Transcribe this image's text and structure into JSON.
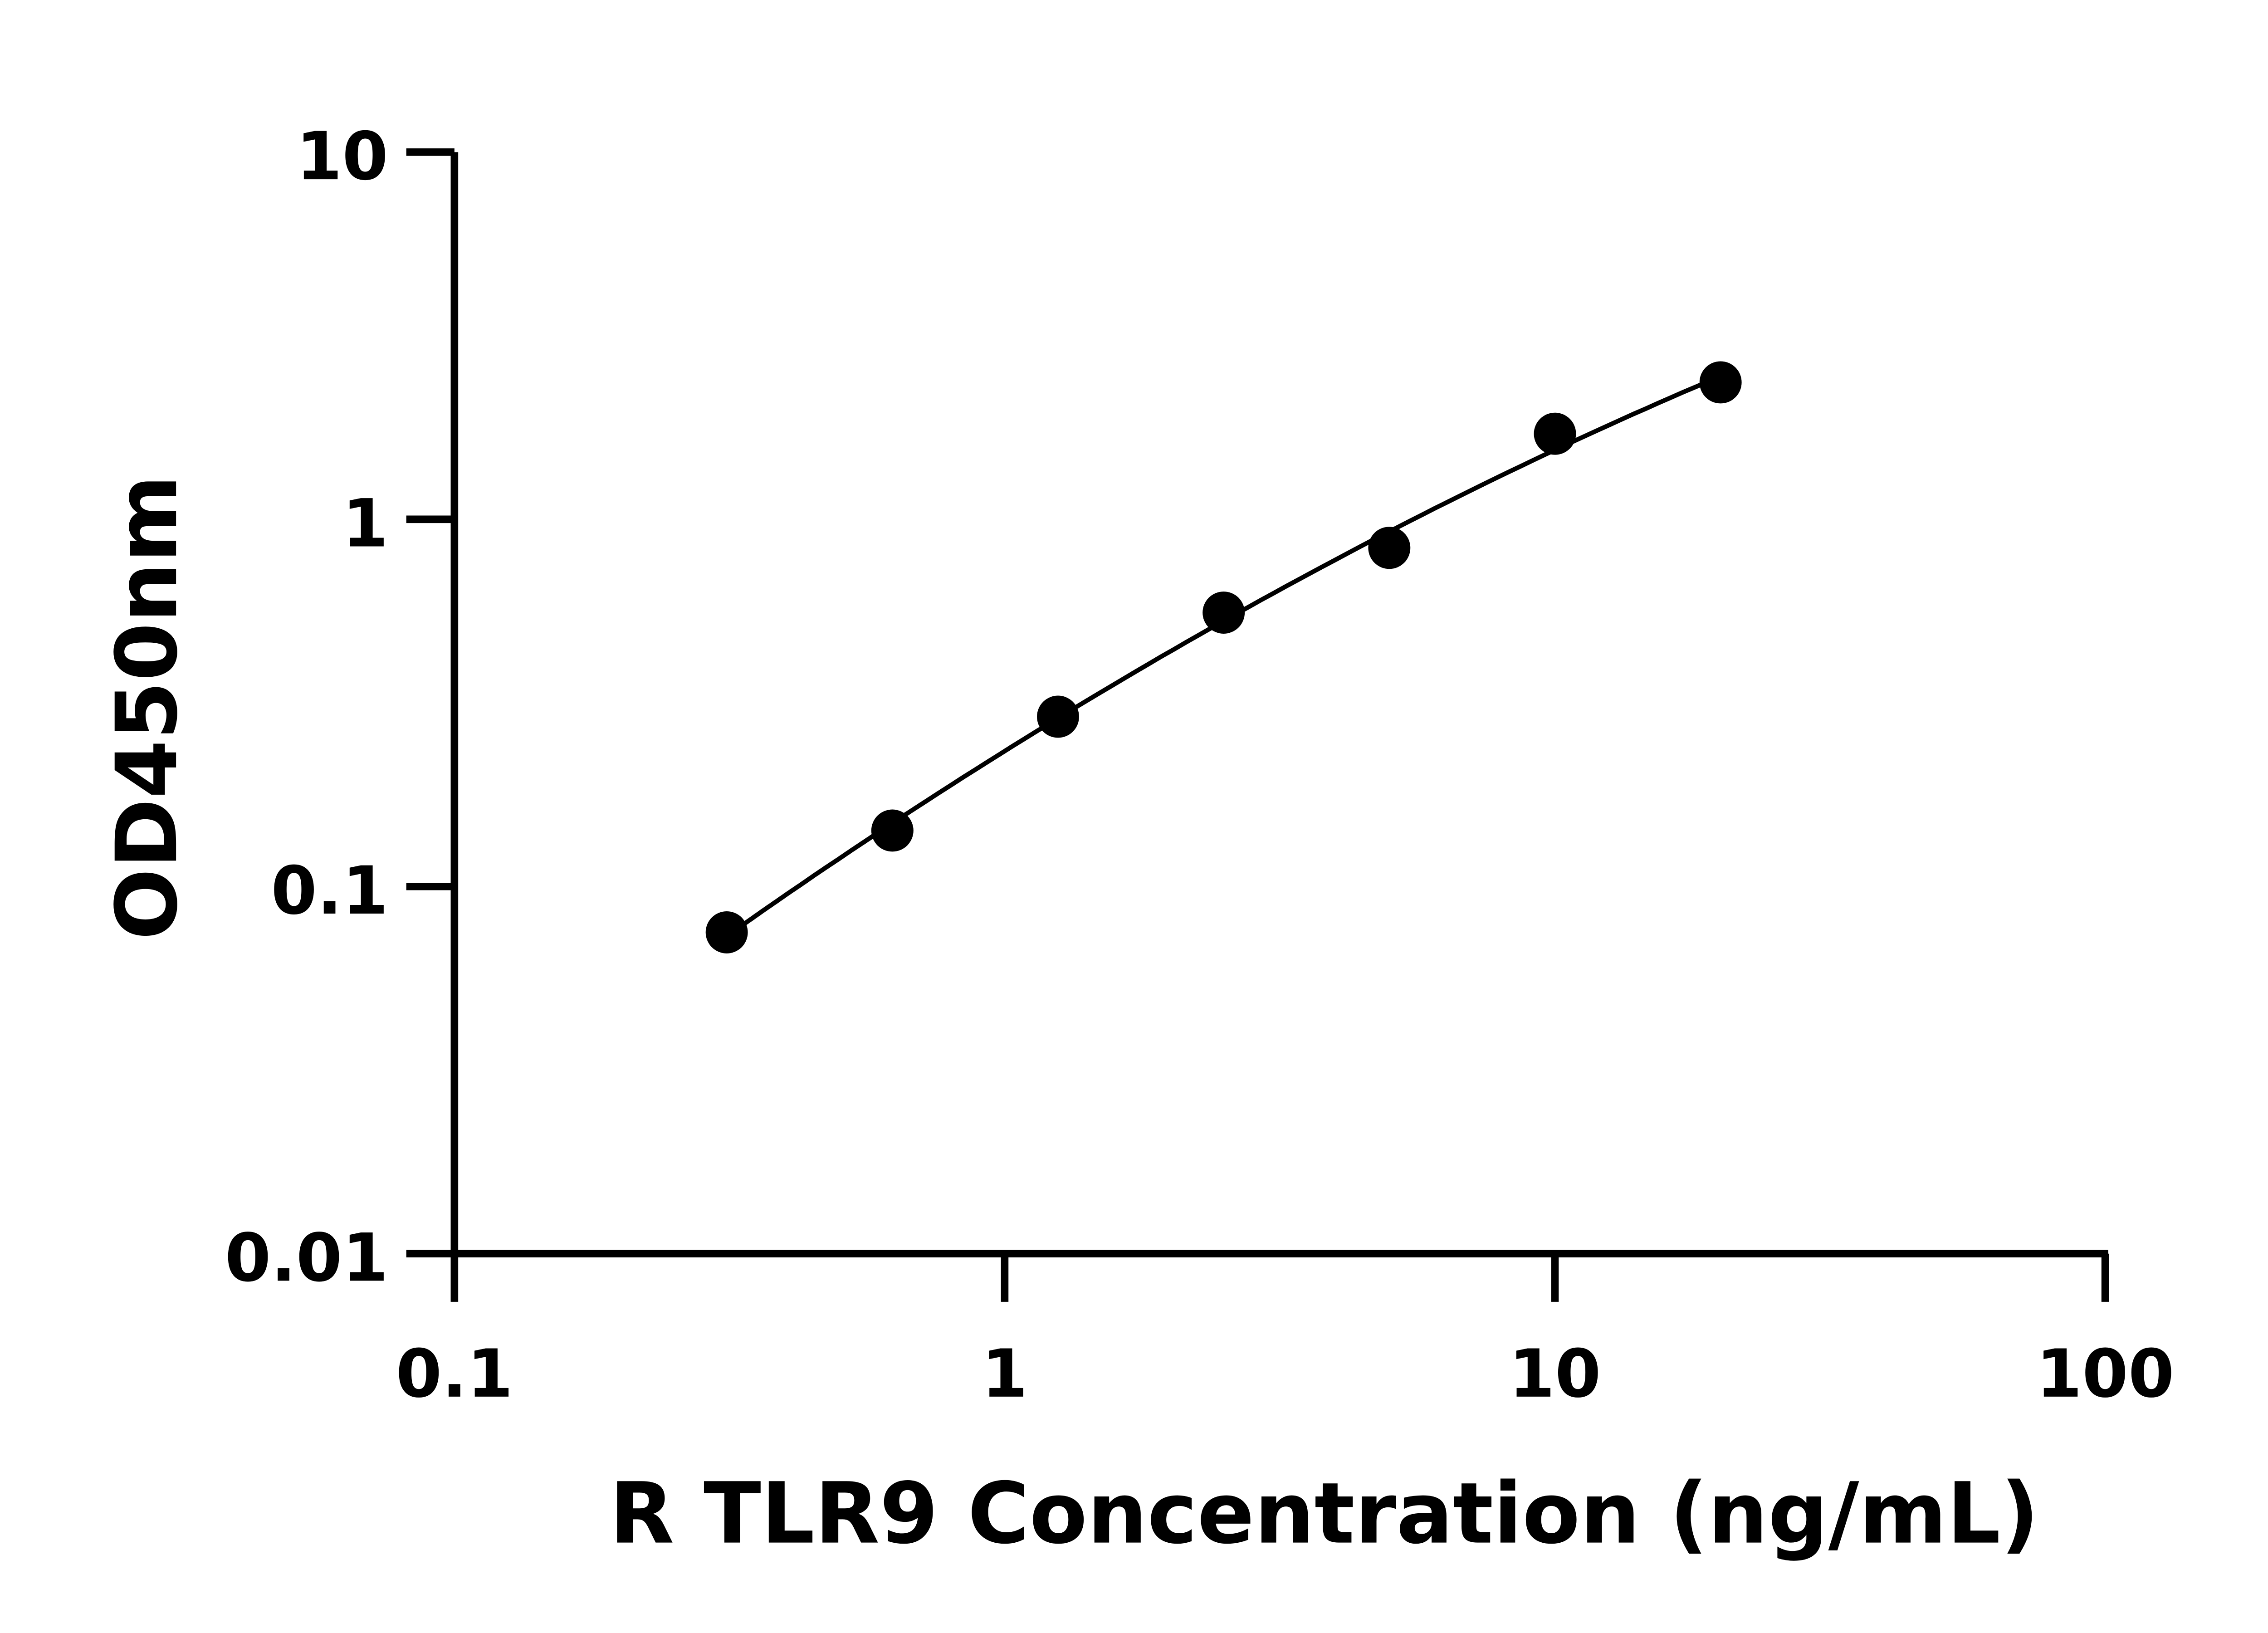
{
  "chart_data": {
    "type": "scatter",
    "title": "",
    "xlabel": "R TLR9 Concentration (ng/mL)",
    "ylabel": "OD450nm",
    "x_scale": "log",
    "y_scale": "log",
    "xlim": [
      0.1,
      100
    ],
    "ylim": [
      0.01,
      10
    ],
    "x_ticks": [
      "0.1",
      "1",
      "10",
      "100"
    ],
    "y_ticks": [
      "0.01",
      "0.1",
      "1",
      "10"
    ],
    "grid": false,
    "legend": "none",
    "fit_curve": true,
    "series": [
      {
        "x": [
          0.3125,
          0.625,
          1.25,
          2.5,
          5,
          10,
          20
        ],
        "y": [
          0.075,
          0.142,
          0.29,
          0.557,
          0.836,
          1.71,
          2.36
        ],
        "color": "#000000"
      }
    ]
  }
}
